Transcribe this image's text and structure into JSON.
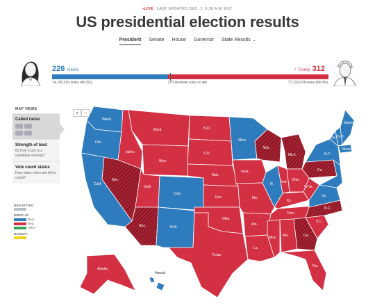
{
  "header": {
    "live": "LIVE",
    "last_updated": "LAST UPDATED DEC. 1, 6:28 A.M. EST",
    "title": "US presidential election results"
  },
  "nav": {
    "tabs": [
      "President",
      "Senate",
      "House",
      "Governor",
      "State Results"
    ],
    "active": "President"
  },
  "candidates": {
    "left": {
      "name": "Harris",
      "electoral": "226",
      "votes": "74,700,293 votes (48.3%)",
      "color": "#2e7bbd"
    },
    "right": {
      "name": "Trump",
      "electoral": "312",
      "votes": "77,133,674 votes (49.9%)",
      "color": "#d33044",
      "check": "✓"
    }
  },
  "bar": {
    "to_win": "270 electoral votes to win",
    "dem_share": 0.42
  },
  "panel": {
    "heading": "MAP VIEWS",
    "items": [
      {
        "label": "Called races",
        "sub": ""
      },
      {
        "label": "Strength of lead",
        "sub": "By how much is a candidate winning?"
      },
      {
        "label": "Vote count status",
        "sub": "How many votes are left to count?"
      }
    ]
  },
  "legend": {
    "reporting": "REPORTING",
    "winflip": "WIN/FLIP",
    "dem": "Dem.",
    "rep": "Rep.",
    "other": "Other",
    "runoff": "RUNOFF"
  },
  "zoom": {
    "plus": "+",
    "minus": "−"
  },
  "map": {
    "colors": {
      "dem": "#2e7bbd",
      "rep": "#d33044",
      "flip": "#8b1a28",
      "other": "#3aa655",
      "runoff": "#f5d31c",
      "reporting": "#b8c0cc"
    },
    "states": {
      "wash": "Wash.",
      "ore": "Ore.",
      "calif": "Calif.",
      "idaho": "Idaho",
      "nev": "Nev.",
      "mont": "Mont.",
      "wyo": "Wyo.",
      "utah": "Utah",
      "colo": "Colo.",
      "ariz": "Ariz.",
      "nm": "N.M.",
      "nd": "N.D.",
      "sd": "S.D.",
      "neb": "Neb.",
      "kan": "Kan.",
      "okla": "Okla.",
      "texas": "Texas",
      "minn": "Minn.",
      "iowa": "Iowa",
      "mo": "Mo.",
      "ark": "Ark.",
      "la": "La.",
      "wis": "Wis.",
      "ill": "Ill.",
      "mich": "Mich.",
      "ind": "Ind.",
      "ohio": "Ohio",
      "ky": "Ky.",
      "tenn": "Tenn.",
      "miss": "Miss.",
      "ala": "Ala.",
      "ga": "Ga.",
      "fla": "Fla.",
      "sc": "S.C.",
      "nc": "N.C.",
      "va": "Va.",
      "wva": "W.Va.",
      "pa": "Pa.",
      "ny": "N.Y.",
      "vt": "Vt.",
      "nh": "N.H.",
      "maine": "Maine",
      "mass": "Mass.",
      "alaska": "Alaska",
      "hawaii": "Hawaii"
    }
  }
}
